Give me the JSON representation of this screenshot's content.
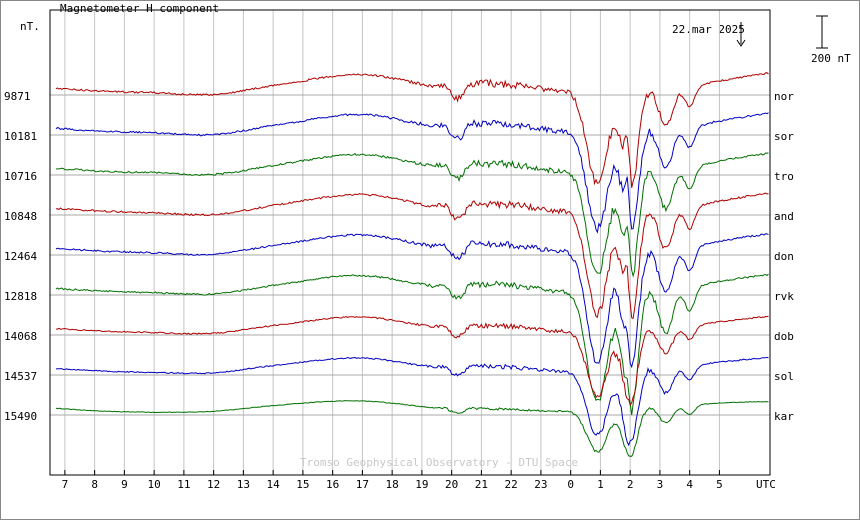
{
  "chart_data": {
    "type": "line",
    "title": "Magnetometer H component",
    "unit": "nT.",
    "date": "22.mar 2025",
    "scale_bar": "200 nT",
    "watermark": "Tromso Geophysical Observatory - DTU Space",
    "x_axis_label": "UTC",
    "x_ticks": [
      "7",
      "8",
      "9",
      "10",
      "11",
      "12",
      "13",
      "14",
      "15",
      "16",
      "17",
      "18",
      "19",
      "20",
      "21",
      "22",
      "23",
      "0",
      "1",
      "2",
      "3",
      "4",
      "5"
    ],
    "grid": true,
    "stations": [
      {
        "name": "nor",
        "baseline": "9871",
        "color": "#b00000",
        "noise": 1.0,
        "dip": 1.0,
        "peak": 1.0
      },
      {
        "name": "sor",
        "baseline": "10181",
        "color": "#0000c0",
        "noise": 1.0,
        "dip": 1.05,
        "peak": 1.0
      },
      {
        "name": "tro",
        "baseline": "10716",
        "color": "#007000",
        "noise": 1.0,
        "dip": 1.1,
        "peak": 1.0
      },
      {
        "name": "and",
        "baseline": "10848",
        "color": "#b00000",
        "noise": 1.0,
        "dip": 1.1,
        "peak": 0.9
      },
      {
        "name": "don",
        "baseline": "12464",
        "color": "#0000c0",
        "noise": 0.95,
        "dip": 1.2,
        "peak": 0.7
      },
      {
        "name": "rvk",
        "baseline": "12818",
        "color": "#007000",
        "noise": 0.9,
        "dip": 1.2,
        "peak": 0.5
      },
      {
        "name": "dob",
        "baseline": "14068",
        "color": "#b00000",
        "noise": 0.75,
        "dip": 0.7,
        "peak": 0.0
      },
      {
        "name": "sol",
        "baseline": "14537",
        "color": "#0000c0",
        "noise": 0.65,
        "dip": 0.7,
        "peak": 0.0
      },
      {
        "name": "kar",
        "baseline": "15490",
        "color": "#007000",
        "noise": 0.35,
        "dip": 0.45,
        "peak": 0.0
      }
    ]
  }
}
